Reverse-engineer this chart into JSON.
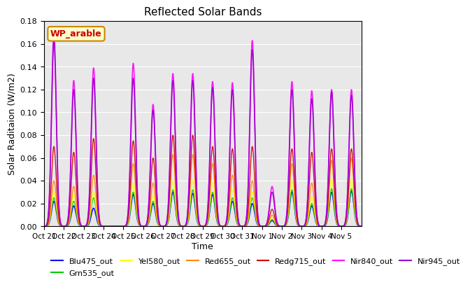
{
  "title": "Reflected Solar Bands",
  "xlabel": "Time",
  "ylabel": "Solar Raditaion (W/m2)",
  "ylim": [
    0,
    0.18
  ],
  "yticks": [
    0.0,
    0.02,
    0.04,
    0.06,
    0.08,
    0.1,
    0.12,
    0.14,
    0.16,
    0.18
  ],
  "xtick_labels": [
    "Oct 21",
    "Oct 22",
    "Oct 23",
    "Oct 24",
    "Oct 25",
    "Oct 26",
    "Oct 27",
    "Oct 28",
    "Oct 29",
    "Oct 30",
    "Oct 31",
    "Nov 1",
    "Nov 2",
    "Nov 3",
    "Nov 4",
    "Nov 5"
  ],
  "annotation_text": "WP_arable",
  "series": [
    {
      "name": "Blu475_out",
      "color": "#0000ff",
      "lw": 1.2
    },
    {
      "name": "Grn535_out",
      "color": "#00cc00",
      "lw": 1.0
    },
    {
      "name": "Yel580_out",
      "color": "#ffff00",
      "lw": 1.0
    },
    {
      "name": "Red655_out",
      "color": "#ff8800",
      "lw": 1.0
    },
    {
      "name": "Redg715_out",
      "color": "#cc0000",
      "lw": 1.0
    },
    {
      "name": "Nir840_out",
      "color": "#ff00ff",
      "lw": 1.2
    },
    {
      "name": "Nir945_out",
      "color": "#9900cc",
      "lw": 1.2
    }
  ],
  "plot_bg_color": "#e8e8e8",
  "nir840_peaks": [
    0.171,
    0.128,
    0.139,
    0.0,
    0.143,
    0.107,
    0.134,
    0.134,
    0.127,
    0.126,
    0.163,
    0.035,
    0.127,
    0.119,
    0.12,
    0.12
  ],
  "nir945_peaks": [
    0.162,
    0.12,
    0.13,
    0.0,
    0.13,
    0.102,
    0.128,
    0.128,
    0.122,
    0.12,
    0.155,
    0.03,
    0.12,
    0.112,
    0.118,
    0.115
  ],
  "blu475_peaks": [
    0.022,
    0.018,
    0.016,
    0.0,
    0.028,
    0.02,
    0.03,
    0.029,
    0.028,
    0.022,
    0.02,
    0.005,
    0.03,
    0.018,
    0.03,
    0.031
  ],
  "grn535_peaks": [
    0.025,
    0.022,
    0.025,
    0.0,
    0.03,
    0.022,
    0.032,
    0.032,
    0.03,
    0.025,
    0.025,
    0.006,
    0.032,
    0.02,
    0.033,
    0.033
  ],
  "yel580_peaks": [
    0.03,
    0.028,
    0.03,
    0.0,
    0.038,
    0.028,
    0.04,
    0.04,
    0.038,
    0.032,
    0.03,
    0.008,
    0.04,
    0.026,
    0.042,
    0.042
  ],
  "red655_peaks": [
    0.04,
    0.035,
    0.045,
    0.0,
    0.055,
    0.038,
    0.063,
    0.063,
    0.055,
    0.045,
    0.04,
    0.01,
    0.055,
    0.038,
    0.058,
    0.06
  ],
  "redg715_peaks": [
    0.07,
    0.065,
    0.077,
    0.0,
    0.075,
    0.06,
    0.08,
    0.08,
    0.07,
    0.068,
    0.07,
    0.015,
    0.068,
    0.065,
    0.068,
    0.068
  ]
}
